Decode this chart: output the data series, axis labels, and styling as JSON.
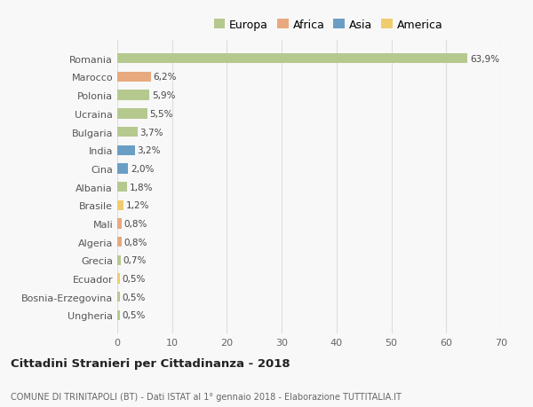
{
  "countries": [
    "Romania",
    "Marocco",
    "Polonia",
    "Ucraina",
    "Bulgaria",
    "India",
    "Cina",
    "Albania",
    "Brasile",
    "Mali",
    "Algeria",
    "Grecia",
    "Ecuador",
    "Bosnia-Erzegovina",
    "Ungheria"
  ],
  "values": [
    63.9,
    6.2,
    5.9,
    5.5,
    3.7,
    3.2,
    2.0,
    1.8,
    1.2,
    0.8,
    0.8,
    0.7,
    0.5,
    0.5,
    0.5
  ],
  "labels": [
    "63,9%",
    "6,2%",
    "5,9%",
    "5,5%",
    "3,7%",
    "3,2%",
    "2,0%",
    "1,8%",
    "1,2%",
    "0,8%",
    "0,8%",
    "0,7%",
    "0,5%",
    "0,5%",
    "0,5%"
  ],
  "colors": [
    "#b5c98e",
    "#e8a97e",
    "#b5c98e",
    "#b5c98e",
    "#b5c98e",
    "#6a9ec5",
    "#6a9ec5",
    "#b5c98e",
    "#f0cc6e",
    "#e8a97e",
    "#e8a97e",
    "#b5c98e",
    "#f0cc6e",
    "#b5c98e",
    "#b5c98e"
  ],
  "legend_labels": [
    "Europa",
    "Africa",
    "Asia",
    "America"
  ],
  "legend_colors": [
    "#b5c98e",
    "#e8a97e",
    "#6a9ec5",
    "#f0cc6e"
  ],
  "title": "Cittadini Stranieri per Cittadinanza - 2018",
  "subtitle": "COMUNE DI TRINITAPOLI (BT) - Dati ISTAT al 1° gennaio 2018 - Elaborazione TUTTITALIA.IT",
  "xlim": [
    0,
    70
  ],
  "xticks": [
    0,
    10,
    20,
    30,
    40,
    50,
    60,
    70
  ],
  "bg_color": "#f8f8f8",
  "grid_color": "#dddddd"
}
